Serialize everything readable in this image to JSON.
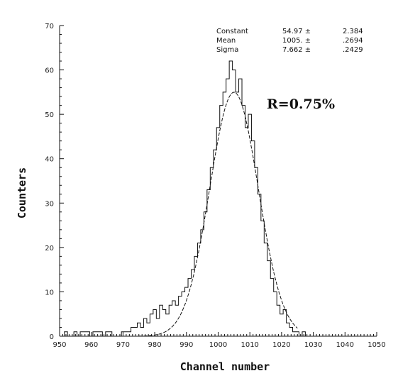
{
  "chart_data": {
    "type": "histogram",
    "xlabel": "Channel number",
    "ylabel": "Counters",
    "xlim": [
      950,
      1050
    ],
    "ylim": [
      0,
      70
    ],
    "x_ticks": [
      "950",
      "960",
      "970",
      "980",
      "990",
      "1000",
      "1010",
      "1020",
      "1030",
      "1040",
      "1050"
    ],
    "y_ticks": [
      "0",
      "10",
      "20",
      "30",
      "40",
      "50",
      "60",
      "70"
    ],
    "grid": false,
    "stats": [
      {
        "label": "Constant",
        "value": "54.97 ±",
        "error": "2.384"
      },
      {
        "label": "Mean",
        "value": "1005. ±",
        "error": ".2694"
      },
      {
        "label": "Sigma",
        "value": "7.662 ±",
        "error": ".2429"
      }
    ],
    "annotation": "R=0.75%",
    "bin_width": 1,
    "x": [
      952,
      953,
      954,
      955,
      956,
      957,
      958,
      959,
      960,
      961,
      962,
      963,
      964,
      965,
      966,
      967,
      968,
      969,
      970,
      971,
      972,
      973,
      974,
      975,
      976,
      977,
      978,
      979,
      980,
      981,
      982,
      983,
      984,
      985,
      986,
      987,
      988,
      989,
      990,
      991,
      992,
      993,
      994,
      995,
      996,
      997,
      998,
      999,
      1000,
      1001,
      1002,
      1003,
      1004,
      1005,
      1006,
      1007,
      1008,
      1009,
      1010,
      1011,
      1012,
      1013,
      1014,
      1015,
      1016,
      1017,
      1018,
      1019,
      1020,
      1021,
      1022,
      1023,
      1024,
      1025,
      1026,
      1027
    ],
    "values": [
      1,
      0,
      0,
      1,
      0,
      1,
      1,
      1,
      0,
      1,
      1,
      1,
      0,
      1,
      1,
      0,
      0,
      0,
      1,
      1,
      1,
      2,
      2,
      3,
      2,
      4,
      3,
      5,
      6,
      4,
      7,
      6,
      5,
      7,
      8,
      7,
      9,
      10,
      11,
      13,
      15,
      18,
      21,
      24,
      28,
      33,
      38,
      42,
      47,
      52,
      55,
      58,
      62,
      60,
      55,
      58,
      52,
      47,
      50,
      44,
      38,
      32,
      26,
      21,
      17,
      13,
      10,
      7,
      5,
      6,
      3,
      2,
      1,
      1,
      0,
      1
    ],
    "fit": {
      "type": "gaussian",
      "constant": 54.97,
      "mean": 1005,
      "sigma": 7.662,
      "range": [
        975,
        1025
      ]
    }
  }
}
